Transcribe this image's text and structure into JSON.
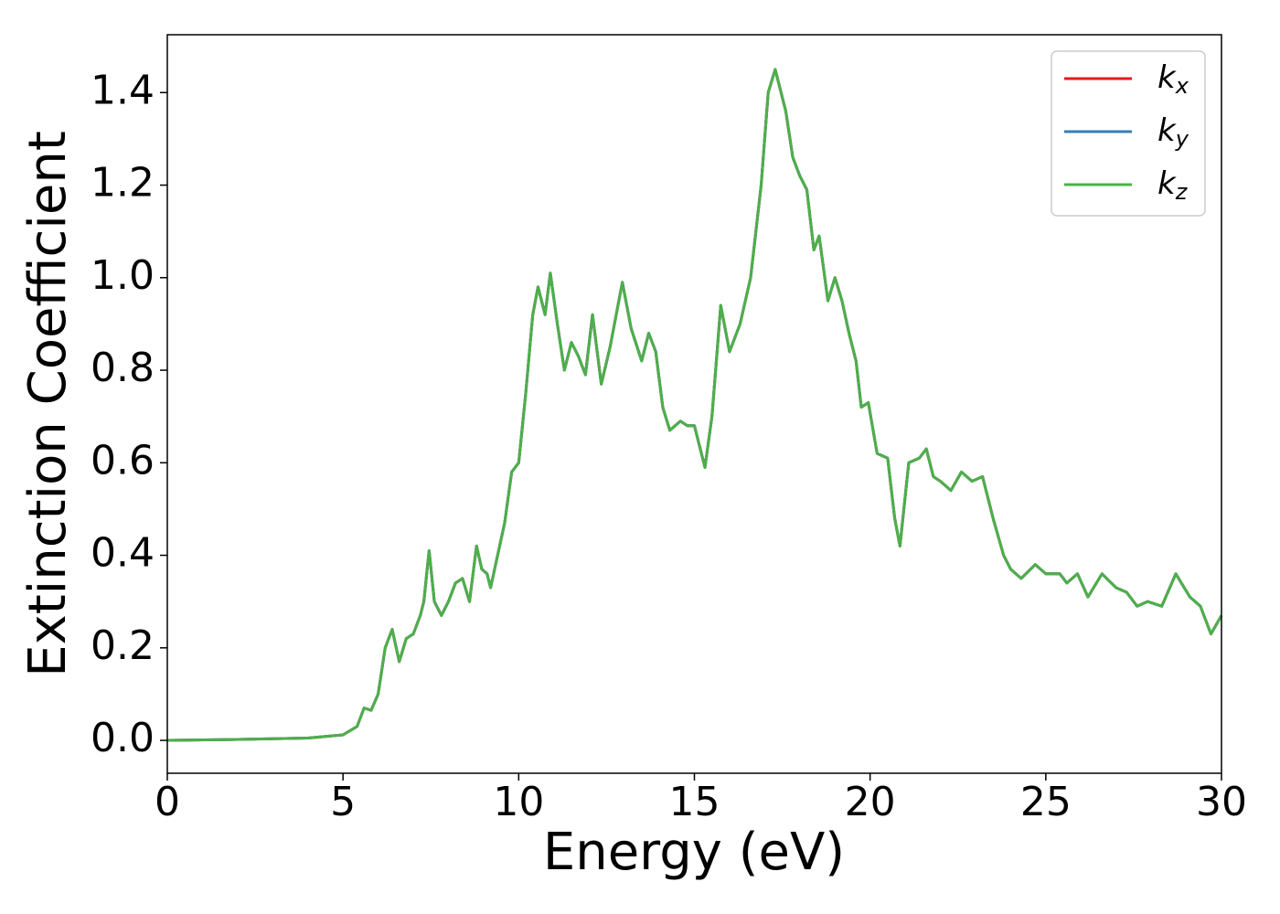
{
  "chart_data": {
    "type": "line",
    "xlabel": "Energy (eV)",
    "ylabel": "Extinction Coefficient",
    "xlim": [
      0,
      30
    ],
    "ylim": [
      -0.071,
      1.525
    ],
    "xticks": [
      0,
      5,
      10,
      15,
      20,
      25,
      30
    ],
    "yticks": [
      {
        "value": 0,
        "label": "0.0"
      },
      0.2,
      0.4,
      0.6,
      0.8,
      {
        "value": 1,
        "label": "1.0"
      },
      1.2,
      1.4
    ],
    "legend": "upper right",
    "x": [
      0,
      2,
      4,
      5,
      5.4,
      5.6,
      5.8,
      6,
      6.2,
      6.4,
      6.6,
      6.8,
      7,
      7.2,
      7.3,
      7.45,
      7.6,
      7.8,
      8,
      8.2,
      8.4,
      8.6,
      8.8,
      8.95,
      9.1,
      9.2,
      9.4,
      9.6,
      9.8,
      10,
      10.2,
      10.4,
      10.55,
      10.75,
      10.9,
      11.1,
      11.3,
      11.5,
      11.7,
      11.9,
      12.1,
      12.35,
      12.6,
      12.95,
      13.2,
      13.5,
      13.7,
      13.9,
      14.1,
      14.3,
      14.6,
      14.8,
      15,
      15.3,
      15.5,
      15.75,
      16,
      16.3,
      16.6,
      16.9,
      17.1,
      17.3,
      17.6,
      17.8,
      18,
      18.2,
      18.4,
      18.55,
      18.8,
      19,
      19.2,
      19.4,
      19.6,
      19.75,
      19.95,
      20.2,
      20.5,
      20.7,
      20.85,
      21.1,
      21.4,
      21.6,
      21.8,
      22,
      22.3,
      22.6,
      22.9,
      23.2,
      23.5,
      23.8,
      24,
      24.3,
      24.7,
      25,
      25.4,
      25.6,
      25.9,
      26.2,
      26.6,
      27,
      27.3,
      27.6,
      27.9,
      28.3,
      28.7,
      29.1,
      29.4,
      29.7,
      30
    ],
    "series": [
      {
        "name": "kx",
        "color": "#e41a1c",
        "values": [
          0,
          0.002,
          0.005,
          0.012,
          0.03,
          0.07,
          0.065,
          0.1,
          0.2,
          0.24,
          0.17,
          0.22,
          0.23,
          0.27,
          0.3,
          0.41,
          0.3,
          0.27,
          0.3,
          0.34,
          0.35,
          0.3,
          0.42,
          0.37,
          0.36,
          0.33,
          0.4,
          0.47,
          0.58,
          0.6,
          0.75,
          0.92,
          0.98,
          0.92,
          1.01,
          0.9,
          0.8,
          0.86,
          0.83,
          0.79,
          0.92,
          0.77,
          0.85,
          0.99,
          0.89,
          0.82,
          0.88,
          0.84,
          0.72,
          0.67,
          0.69,
          0.68,
          0.68,
          0.59,
          0.7,
          0.94,
          0.84,
          0.9,
          1.0,
          1.2,
          1.4,
          1.45,
          1.36,
          1.26,
          1.22,
          1.19,
          1.06,
          1.09,
          0.95,
          1.0,
          0.95,
          0.88,
          0.82,
          0.72,
          0.73,
          0.62,
          0.61,
          0.48,
          0.42,
          0.6,
          0.61,
          0.63,
          0.57,
          0.56,
          0.54,
          0.58,
          0.56,
          0.57,
          0.48,
          0.4,
          0.37,
          0.35,
          0.38,
          0.36,
          0.36,
          0.34,
          0.36,
          0.31,
          0.36,
          0.33,
          0.32,
          0.29,
          0.3,
          0.29,
          0.36,
          0.31,
          0.29,
          0.23,
          0.27
        ]
      },
      {
        "name": "ky",
        "color": "#377eb8",
        "values": [
          0,
          0.002,
          0.005,
          0.012,
          0.03,
          0.07,
          0.065,
          0.1,
          0.2,
          0.24,
          0.17,
          0.22,
          0.23,
          0.27,
          0.3,
          0.41,
          0.3,
          0.27,
          0.3,
          0.34,
          0.35,
          0.3,
          0.42,
          0.37,
          0.36,
          0.33,
          0.4,
          0.47,
          0.58,
          0.6,
          0.75,
          0.92,
          0.98,
          0.92,
          1.01,
          0.9,
          0.8,
          0.86,
          0.83,
          0.79,
          0.92,
          0.77,
          0.85,
          0.99,
          0.89,
          0.82,
          0.88,
          0.84,
          0.72,
          0.67,
          0.69,
          0.68,
          0.68,
          0.59,
          0.7,
          0.94,
          0.84,
          0.9,
          1.0,
          1.2,
          1.4,
          1.45,
          1.36,
          1.26,
          1.22,
          1.19,
          1.06,
          1.09,
          0.95,
          1.0,
          0.95,
          0.88,
          0.82,
          0.72,
          0.73,
          0.62,
          0.61,
          0.48,
          0.42,
          0.6,
          0.61,
          0.63,
          0.57,
          0.56,
          0.54,
          0.58,
          0.56,
          0.57,
          0.48,
          0.4,
          0.37,
          0.35,
          0.38,
          0.36,
          0.36,
          0.34,
          0.36,
          0.31,
          0.36,
          0.33,
          0.32,
          0.29,
          0.3,
          0.29,
          0.36,
          0.31,
          0.29,
          0.23,
          0.27
        ]
      },
      {
        "name": "kz",
        "color": "#4daf4a",
        "values": [
          0,
          0.002,
          0.005,
          0.012,
          0.03,
          0.07,
          0.065,
          0.1,
          0.2,
          0.24,
          0.17,
          0.22,
          0.23,
          0.27,
          0.3,
          0.41,
          0.3,
          0.27,
          0.3,
          0.34,
          0.35,
          0.3,
          0.42,
          0.37,
          0.36,
          0.33,
          0.4,
          0.47,
          0.58,
          0.6,
          0.75,
          0.92,
          0.98,
          0.92,
          1.01,
          0.9,
          0.8,
          0.86,
          0.83,
          0.79,
          0.92,
          0.77,
          0.85,
          0.99,
          0.89,
          0.82,
          0.88,
          0.84,
          0.72,
          0.67,
          0.69,
          0.68,
          0.68,
          0.59,
          0.7,
          0.94,
          0.84,
          0.9,
          1.0,
          1.2,
          1.4,
          1.45,
          1.36,
          1.26,
          1.22,
          1.19,
          1.06,
          1.09,
          0.95,
          1.0,
          0.95,
          0.88,
          0.82,
          0.72,
          0.73,
          0.62,
          0.61,
          0.48,
          0.42,
          0.6,
          0.61,
          0.63,
          0.57,
          0.56,
          0.54,
          0.58,
          0.56,
          0.57,
          0.48,
          0.4,
          0.37,
          0.35,
          0.38,
          0.36,
          0.36,
          0.34,
          0.36,
          0.31,
          0.36,
          0.33,
          0.32,
          0.29,
          0.3,
          0.29,
          0.36,
          0.31,
          0.29,
          0.23,
          0.27
        ]
      }
    ]
  }
}
